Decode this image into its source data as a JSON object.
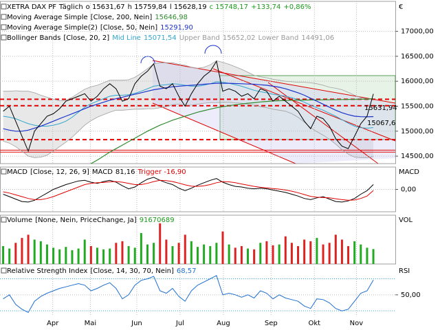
{
  "chart_data": [
    {
      "type": "line",
      "title": "XETRA DAX PF",
      "interval": "Täglich",
      "ohlc": [
        "o 15631,67",
        "h 15759,84",
        "l 15628,19",
        "c 15748,17"
      ],
      "change": "+133,74",
      "change_pct": "+0,86%",
      "currency": "€",
      "xlim": [
        -0.5,
        62.5
      ],
      "xticks": [
        {
          "value": 7.9,
          "label": "Apr"
        },
        {
          "value": 13.9,
          "label": "Mai"
        },
        {
          "value": 21.3,
          "label": "Jun"
        },
        {
          "value": 28.2,
          "label": "Jul"
        },
        {
          "value": 35.1,
          "label": "Aug"
        },
        {
          "value": 42.7,
          "label": "Sep"
        },
        {
          "value": 49.6,
          "label": "Okt"
        },
        {
          "value": 56.3,
          "label": "Nov"
        }
      ],
      "ylim": [
        14350,
        17600
      ],
      "yticks": [
        {
          "value": 14500,
          "label": "14500,00"
        },
        {
          "value": 15000,
          "label": "15000,00"
        },
        {
          "value": 15500,
          "label": "15500,00"
        },
        {
          "value": 16000,
          "label": "16000,00"
        },
        {
          "value": 16500,
          "label": "16500,00"
        },
        {
          "value": 17000,
          "label": "17000,00"
        }
      ],
      "grid": true,
      "values": [
        15400,
        15500,
        15200,
        14900,
        14600,
        15000,
        15150,
        15300,
        15350,
        15450,
        15600,
        15650,
        15700,
        15750,
        15600,
        15700,
        15850,
        15950,
        15850,
        15600,
        15650,
        15950,
        16100,
        16200,
        16350,
        15900,
        15850,
        15950,
        15700,
        15500,
        15750,
        15950,
        16100,
        16200,
        16400,
        15800,
        15850,
        15800,
        15700,
        15750,
        15650,
        15850,
        15800,
        15600,
        15700,
        15600,
        15500,
        15400,
        15200,
        15050,
        15300,
        15250,
        15100,
        14850,
        14700,
        14650,
        14900,
        15150,
        15300,
        15748.17
      ],
      "color": "#000000",
      "series": [
        {
          "name": "Moving Average Simple",
          "params": "[Close, 200, Nein]",
          "last_label": "15646,98",
          "color": "#2e8b2e",
          "values": [
            null,
            null,
            null,
            null,
            null,
            null,
            null,
            null,
            null,
            null,
            null,
            null,
            null,
            null,
            14350,
            14420,
            14500,
            14580,
            14650,
            14720,
            14790,
            14860,
            14930,
            15000,
            15060,
            15120,
            15170,
            15220,
            15260,
            15300,
            15340,
            15380,
            15410,
            15440,
            15470,
            15490,
            15510,
            15530,
            15545,
            15560,
            15570,
            15585,
            15595,
            15605,
            15610,
            15615,
            15620,
            15622,
            15624,
            15625,
            15627,
            15628,
            15630,
            15632,
            15634,
            15636,
            15638,
            15640,
            15643,
            15646.98
          ]
        },
        {
          "name": "Moving Average Simple(2)",
          "params": "[Close, 50, Nein]",
          "last_label": "15291,90",
          "color": "#1a33cc",
          "values": [
            15050,
            15020,
            15000,
            15000,
            15020,
            15060,
            15100,
            15150,
            15200,
            15250,
            15300,
            15350,
            15400,
            15450,
            15500,
            15540,
            15580,
            15620,
            15650,
            15680,
            15710,
            15740,
            15770,
            15800,
            15830,
            15850,
            15870,
            15890,
            15900,
            15910,
            15920,
            15930,
            15940,
            15950,
            15960,
            15960,
            15960,
            15955,
            15950,
            15945,
            15940,
            15930,
            15920,
            15900,
            15880,
            15850,
            15810,
            15770,
            15720,
            15660,
            15600,
            15540,
            15480,
            15420,
            15370,
            15330,
            15300,
            15290,
            15288,
            15291.9
          ]
        }
      ],
      "bollinger": {
        "name": "Bollinger Bands",
        "params": "[Close, 20, 2]",
        "fill": "#d9d9d9",
        "series": [
          {
            "name": "Mid Line",
            "last_label": "15071,54",
            "color": "#33a6cc",
            "values": [
              15300,
              15280,
              15250,
              15200,
              15150,
              15120,
              15100,
              15100,
              15120,
              15150,
              15200,
              15280,
              15380,
              15480,
              15550,
              15600,
              15650,
              15700,
              15720,
              15720,
              15730,
              15760,
              15800,
              15850,
              15900,
              15920,
              15930,
              15950,
              15940,
              15920,
              15900,
              15900,
              15920,
              15950,
              15990,
              15980,
              15960,
              15930,
              15900,
              15860,
              15820,
              15790,
              15770,
              15740,
              15720,
              15700,
              15670,
              15630,
              15580,
              15520,
              15470,
              15420,
              15360,
              15300,
              15230,
              15160,
              15100,
              15070,
              15060,
              15071.54
            ]
          },
          {
            "name": "Upper Band",
            "last_label": "15652,02",
            "color": "#a0a0a0",
            "values": [
              15800,
              15800,
              15810,
              15800,
              15800,
              15770,
              15720,
              15680,
              15640,
              15610,
              15620,
              15680,
              15760,
              15840,
              15890,
              15920,
              15970,
              16020,
              16020,
              16020,
              16030,
              16080,
              16160,
              16250,
              16350,
              16370,
              16370,
              16370,
              16340,
              16320,
              16280,
              16260,
              16280,
              16330,
              16410,
              16380,
              16340,
              16290,
              16240,
              16180,
              16120,
              16090,
              16070,
              16040,
              16020,
              16000,
              15990,
              15980,
              15980,
              15970,
              15950,
              15920,
              15880,
              15860,
              15830,
              15780,
              15720,
              15670,
              15650,
              15652.02
            ]
          },
          {
            "name": "Lower Band",
            "last_label": "14491,06",
            "color": "#a0a0a0",
            "values": [
              14800,
              14760,
              14690,
              14600,
              14500,
              14470,
              14480,
              14520,
              14600,
              14690,
              14780,
              14880,
              15000,
              15120,
              15210,
              15280,
              15330,
              15380,
              15420,
              15420,
              15430,
              15440,
              15440,
              15450,
              15450,
              15470,
              15490,
              15530,
              15540,
              15520,
              15520,
              15540,
              15560,
              15570,
              15570,
              15580,
              15580,
              15570,
              15560,
              15540,
              15520,
              15490,
              15470,
              15440,
              15420,
              15400,
              15350,
              15280,
              15180,
              15070,
              14990,
              14920,
              14840,
              14740,
              14630,
              14540,
              14480,
              14470,
              14470,
              14491.06
            ]
          }
        ]
      },
      "dashed_levels": [
        15640,
        15510,
        14830
      ],
      "solid_levels": [
        14620,
        14580
      ],
      "level_color": "#e00000",
      "annotations": [
        "15631,94",
        "15067,6"
      ]
    },
    {
      "type": "line",
      "title": "MACD",
      "params": "[Close, 12, 26, 9]",
      "axis_label": "MACD",
      "ylim": [
        -370,
        370
      ],
      "yticks": [
        {
          "value": 0,
          "label": "0,00"
        }
      ],
      "series": [
        {
          "name": "MACD",
          "last_label": "81,16",
          "color": "#000000",
          "values": [
            -80,
            -120,
            -160,
            -200,
            -210,
            -180,
            -120,
            -60,
            0,
            40,
            80,
            110,
            140,
            150,
            120,
            100,
            130,
            150,
            120,
            60,
            10,
            40,
            110,
            170,
            200,
            150,
            110,
            80,
            20,
            -20,
            20,
            70,
            110,
            150,
            180,
            120,
            80,
            50,
            40,
            20,
            10,
            20,
            10,
            -10,
            -30,
            -50,
            -80,
            -110,
            -150,
            -170,
            -140,
            -120,
            -160,
            -200,
            -210,
            -190,
            -150,
            -80,
            -20,
            81.16
          ]
        },
        {
          "name": "Trigger",
          "last_label": "-16,90",
          "color": "#e00000",
          "values": [
            -40,
            -60,
            -90,
            -120,
            -150,
            -170,
            -170,
            -150,
            -120,
            -80,
            -40,
            0,
            40,
            80,
            100,
            110,
            115,
            125,
            130,
            120,
            100,
            80,
            80,
            100,
            130,
            150,
            145,
            130,
            105,
            75,
            55,
            50,
            60,
            80,
            110,
            130,
            125,
            110,
            90,
            70,
            50,
            35,
            25,
            15,
            5,
            -10,
            -30,
            -55,
            -85,
            -115,
            -130,
            -135,
            -140,
            -155,
            -170,
            -180,
            -175,
            -150,
            -110,
            -16.9
          ]
        }
      ]
    },
    {
      "type": "bar",
      "title": "Volume",
      "params": "[None, Nein, PriceChange, Ja]",
      "last_label": "91670689",
      "axis_label": "VOL",
      "ylim": [
        0,
        300000000
      ],
      "up_color": "#22aa22",
      "down_color": "#dd2222",
      "values": [
        110000000,
        95000000,
        130000000,
        160000000,
        180000000,
        150000000,
        140000000,
        120000000,
        100000000,
        90000000,
        105000000,
        85000000,
        95000000,
        150000000,
        110000000,
        100000000,
        90000000,
        95000000,
        130000000,
        140000000,
        110000000,
        100000000,
        190000000,
        120000000,
        130000000,
        250000000,
        150000000,
        110000000,
        130000000,
        180000000,
        140000000,
        105000000,
        120000000,
        110000000,
        130000000,
        200000000,
        120000000,
        100000000,
        110000000,
        95000000,
        90000000,
        130000000,
        140000000,
        115000000,
        120000000,
        170000000,
        130000000,
        110000000,
        150000000,
        140000000,
        160000000,
        120000000,
        130000000,
        180000000,
        150000000,
        110000000,
        140000000,
        120000000,
        100000000,
        91670689
      ]
    },
    {
      "type": "line",
      "title": "Relative Strength Index",
      "params": "[Close, 14, 30, 70, Nein]",
      "last_label": "68,57",
      "axis_label": "RSI",
      "ylim": [
        25,
        85
      ],
      "yticks": [
        {
          "value": 50,
          "label": "50,00"
        }
      ],
      "levels": [
        30,
        70
      ],
      "color": "#1e6fd0",
      "values": [
        45,
        50,
        38,
        32,
        28,
        42,
        48,
        52,
        55,
        58,
        60,
        62,
        64,
        62,
        55,
        58,
        62,
        65,
        58,
        45,
        50,
        62,
        68,
        70,
        73,
        55,
        52,
        58,
        48,
        42,
        55,
        62,
        66,
        70,
        74,
        50,
        52,
        50,
        47,
        50,
        46,
        55,
        52,
        45,
        50,
        46,
        44,
        42,
        36,
        33,
        45,
        44,
        40,
        33,
        30,
        32,
        42,
        52,
        55,
        68.57
      ]
    }
  ]
}
